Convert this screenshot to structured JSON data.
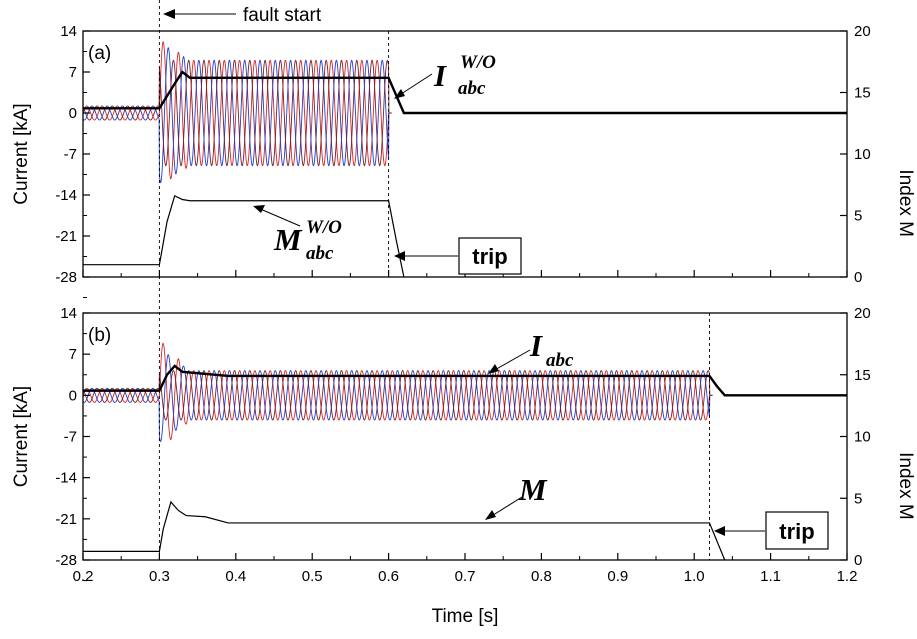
{
  "chart_data": [
    {
      "type": "line",
      "panel_label": "(a)",
      "xlim": [
        0.2,
        1.2
      ],
      "ylim_left": [
        -28,
        14
      ],
      "ylim_right": [
        0,
        20
      ],
      "y_ticks_left": [
        "14",
        "7",
        "0",
        "-7",
        "-14",
        "-21",
        "-28"
      ],
      "y_ticks_right": [
        "20",
        "15",
        "10",
        "5",
        "0"
      ],
      "ylabel_left": "Current [kA]",
      "ylabel_right": "Index M",
      "fault_start": 0.3,
      "trip_time": 0.6,
      "annotations": {
        "fault": "fault start",
        "I_main": "I",
        "I_sup": "W/O",
        "I_sub": "abc",
        "M_main": "M",
        "M_sup": "W/O",
        "M_sub": "abc",
        "trip": "trip"
      },
      "series": [
        {
          "role": "phase-a current",
          "color": "#d62728",
          "prefault_amp_kA": 1.2,
          "fault_amp_kA": 9,
          "peak_kA": 12.6
        },
        {
          "role": "phase-b current",
          "color": "#1f3fd6",
          "prefault_amp_kA": 1.2,
          "fault_amp_kA": 9,
          "peak_kA": -12
        },
        {
          "role": "phase-c current",
          "color": "#7a1f2a",
          "prefault_amp_kA": 1.2,
          "fault_amp_kA": 9
        },
        {
          "role": "current magnitude",
          "color": "#000000",
          "x": [
            0.2,
            0.3,
            0.32,
            0.33,
            0.34,
            0.6,
            0.61,
            0.62,
            1.2
          ],
          "y": [
            0.8,
            0.8,
            5.0,
            7.0,
            6.0,
            6.0,
            3.0,
            0.0,
            0.0
          ]
        },
        {
          "role": "index M",
          "axis": "right",
          "color": "#000000",
          "x": [
            0.2,
            0.3,
            0.31,
            0.32,
            0.33,
            0.34,
            0.6,
            0.61,
            0.62
          ],
          "y": [
            1.0,
            1.0,
            4.5,
            6.6,
            6.3,
            6.2,
            6.2,
            3.0,
            0.0
          ]
        }
      ]
    },
    {
      "type": "line",
      "panel_label": "(b)",
      "xlim": [
        0.2,
        1.2
      ],
      "ylim_left": [
        -28,
        14
      ],
      "ylim_right": [
        0,
        20
      ],
      "x_ticks": [
        "0.2",
        "0.3",
        "0.4",
        "0.5",
        "0.6",
        "0.7",
        "0.8",
        "0.9",
        "1.0",
        "1.1",
        "1.2"
      ],
      "y_ticks_left": [
        "14",
        "7",
        "0",
        "-7",
        "-14",
        "-21",
        "-28"
      ],
      "y_ticks_right": [
        "20",
        "15",
        "10",
        "5",
        "0"
      ],
      "xlabel": "Time [s]",
      "ylabel_left": "Current [kA]",
      "ylabel_right": "Index M",
      "fault_start": 0.3,
      "trip_time": 1.02,
      "annotations": {
        "I_main": "I",
        "I_sub": "abc",
        "M_main": "M",
        "trip": "trip"
      },
      "series": [
        {
          "role": "phase-a current",
          "color": "#d62728",
          "prefault_amp_kA": 1.2,
          "fault_amp_kA": 4.2,
          "peak_kA": 9.5
        },
        {
          "role": "phase-b current",
          "color": "#1f3fd6",
          "prefault_amp_kA": 1.2,
          "fault_amp_kA": 4.2,
          "peak_kA": -8
        },
        {
          "role": "phase-c current",
          "color": "#7a1f2a",
          "prefault_amp_kA": 1.2,
          "fault_amp_kA": 4.2
        },
        {
          "role": "current magnitude",
          "color": "#000000",
          "x": [
            0.2,
            0.3,
            0.31,
            0.32,
            0.33,
            0.39,
            1.02,
            1.03,
            1.04,
            1.2
          ],
          "y": [
            0.8,
            0.8,
            3.5,
            5.0,
            4.0,
            3.3,
            3.3,
            1.5,
            0.0,
            0.0
          ]
        },
        {
          "role": "index M",
          "axis": "right",
          "color": "#000000",
          "x": [
            0.2,
            0.3,
            0.305,
            0.315,
            0.325,
            0.335,
            0.36,
            0.39,
            1.02,
            1.03,
            1.04
          ],
          "y": [
            0.7,
            0.7,
            2.5,
            4.7,
            4.0,
            3.6,
            3.5,
            3.0,
            3.0,
            1.5,
            0.0
          ]
        }
      ]
    }
  ]
}
